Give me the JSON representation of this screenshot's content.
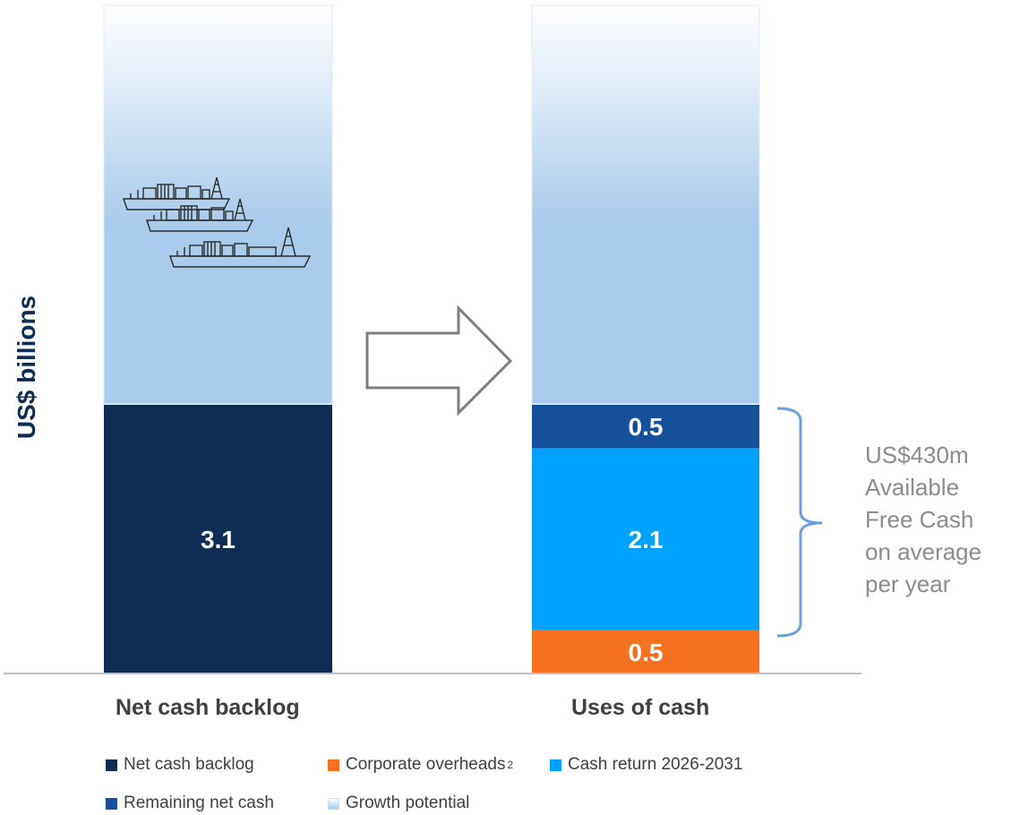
{
  "chart_data": {
    "type": "bar",
    "stacked": true,
    "ylabel": "US$ billions",
    "categories": [
      "Net cash backlog",
      "Uses of cash"
    ],
    "series": [
      {
        "name": "Net cash backlog",
        "color": "#0f2d52",
        "values": [
          3.1,
          0
        ],
        "label": "3.1"
      },
      {
        "name": "Corporate overheads",
        "footnote": "2",
        "color": "#f47120",
        "values": [
          0,
          0.5
        ],
        "label": "0.5"
      },
      {
        "name": "Cash return 2026-2031",
        "color": "#00a2ff",
        "values": [
          0,
          2.1
        ],
        "label": "2.1"
      },
      {
        "name": "Remaining net cash",
        "color": "#16509a",
        "values": [
          0,
          0.5
        ],
        "label": "0.5"
      },
      {
        "name": "Growth potential",
        "color": "#a9cbec",
        "shown_as": "gradient band above each bar"
      }
    ],
    "legend_position": "bottom",
    "annotation": {
      "bracket_span": [
        "Cash return 2026-2031",
        "Remaining net cash"
      ],
      "text_lines": [
        "US$430m",
        "Available",
        "Free Cash",
        "on average",
        "per year"
      ]
    },
    "icon": "fpso-vessels-icon",
    "arrow": "transition-arrow-icon"
  }
}
